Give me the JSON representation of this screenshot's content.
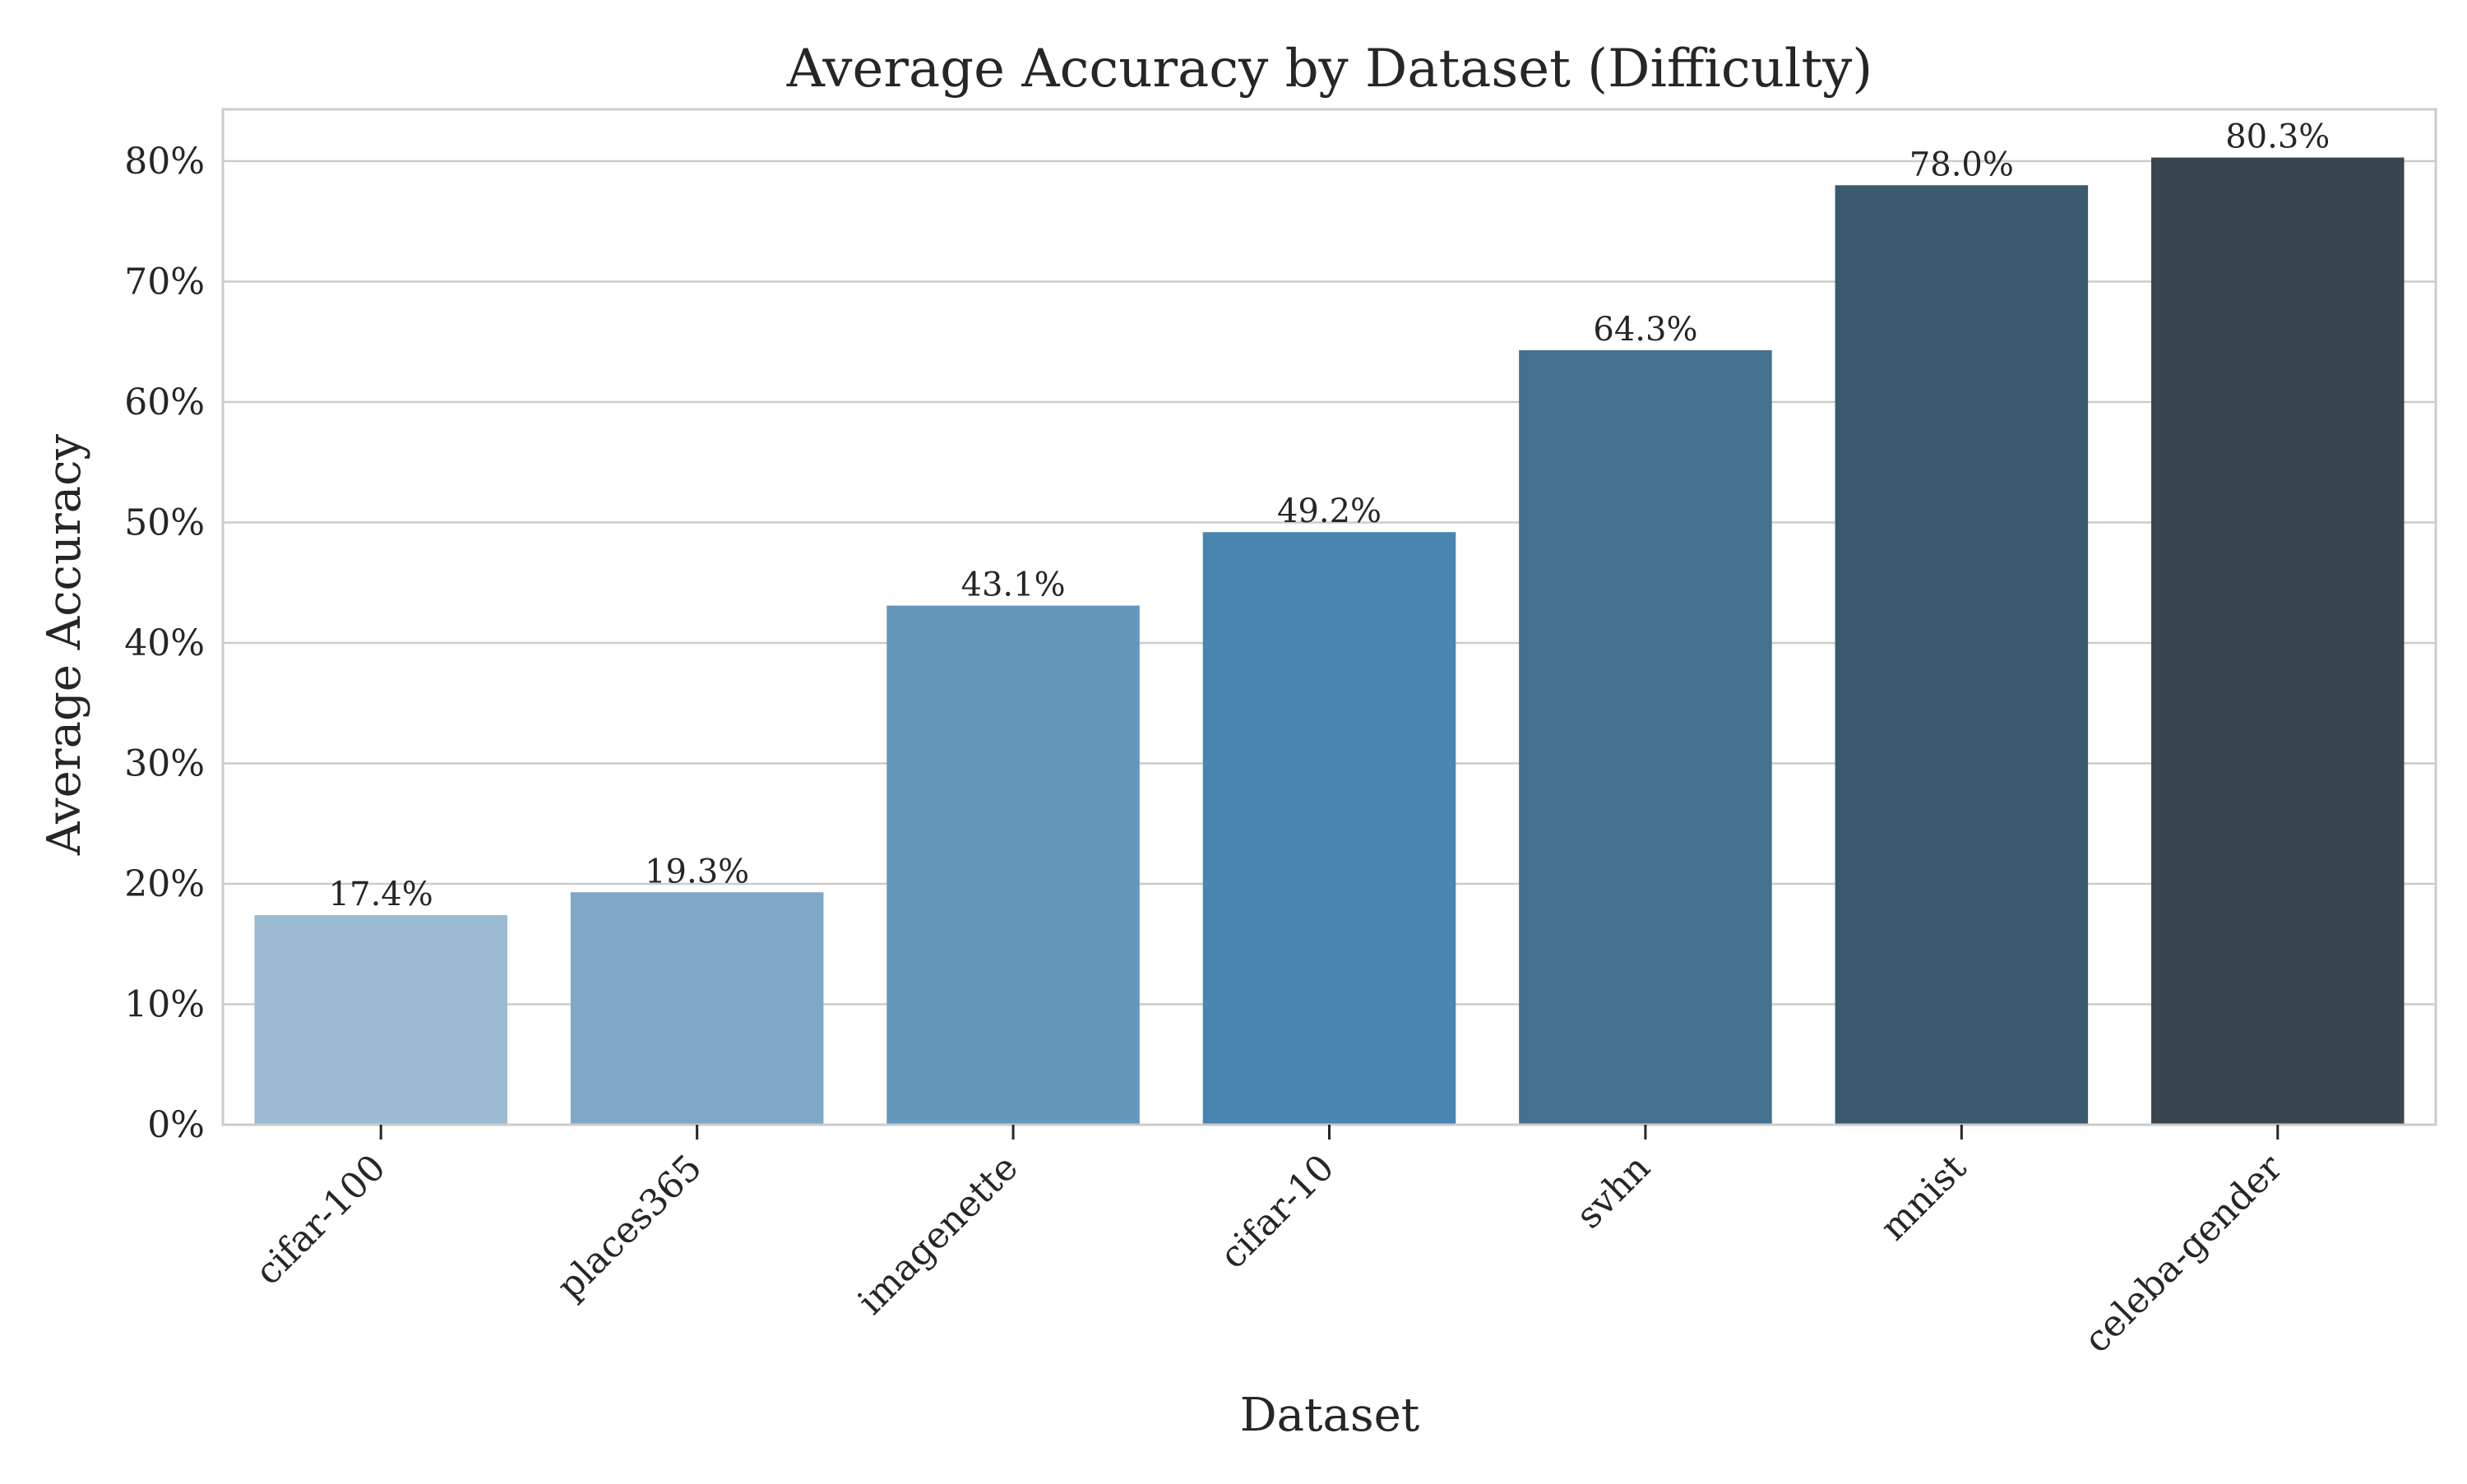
{
  "chart_data": {
    "type": "bar",
    "title": "Average Accuracy by Dataset (Difficulty)",
    "xlabel": "Dataset",
    "ylabel": "Average Accuracy",
    "categories": [
      "cifar-100",
      "places365",
      "imagenette",
      "cifar-10",
      "svhn",
      "mnist",
      "celeba-gender"
    ],
    "values": [
      17.4,
      19.3,
      43.1,
      49.2,
      64.3,
      78.0,
      80.3
    ],
    "data_labels": [
      "17.4%",
      "19.3%",
      "43.1%",
      "49.2%",
      "64.3%",
      "78.0%",
      "80.3%"
    ],
    "bar_colors": [
      "#9abbd2",
      "#7fa8c7",
      "#6497bb",
      "#4a84b0",
      "#45708f",
      "#3c5a6e",
      "#39464f"
    ],
    "ylim": [
      0,
      84.3
    ],
    "yticks": [
      0,
      10,
      20,
      30,
      40,
      50,
      60,
      70,
      80
    ],
    "ytick_labels": [
      "0%",
      "10%",
      "20%",
      "30%",
      "40%",
      "50%",
      "60%",
      "70%",
      "80%"
    ],
    "grid": true,
    "grid_axis": "y",
    "legend": "none"
  }
}
